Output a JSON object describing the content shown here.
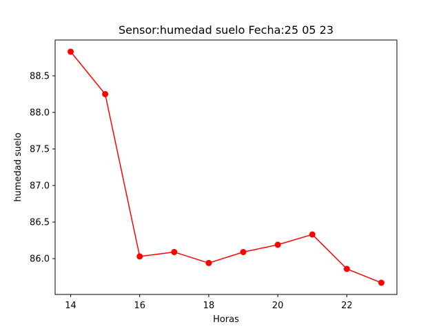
{
  "chart_data": {
    "type": "line",
    "title": "Sensor:humedad suelo Fecha:25 05 23",
    "xlabel": "Horas",
    "ylabel": "humedad suelo",
    "x": [
      14,
      15,
      16,
      17,
      18,
      19,
      20,
      21,
      22,
      23
    ],
    "series": [
      {
        "values": [
          88.83,
          88.25,
          86.03,
          86.09,
          85.94,
          86.09,
          86.19,
          86.33,
          85.86,
          85.67
        ],
        "color": "#ff0000",
        "marker": "circle"
      }
    ],
    "xlim": [
      13.55,
      23.45
    ],
    "ylim": [
      85.51,
      88.99
    ],
    "xticks": [
      14,
      16,
      18,
      20,
      22
    ],
    "xtick_labels": [
      "14",
      "16",
      "18",
      "20",
      "22"
    ],
    "yticks": [
      86.0,
      86.5,
      87.0,
      87.5,
      88.0,
      88.5
    ],
    "ytick_labels": [
      "86.0",
      "86.5",
      "87.0",
      "87.5",
      "88.0",
      "88.5"
    ],
    "grid": false,
    "legend": "none"
  }
}
